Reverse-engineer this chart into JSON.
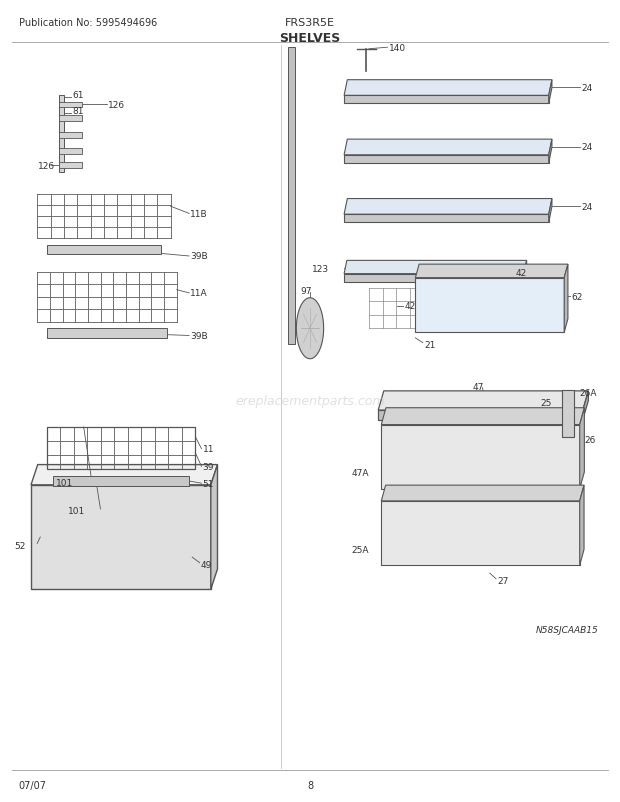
{
  "title": "SHELVES",
  "pub_no": "Publication No: 5995494696",
  "model": "FRS3R5E",
  "date": "07/07",
  "page": "8",
  "watermark": "ereplacementparts.com",
  "diagram_note": "N58SJCAAB15",
  "background_color": "#ffffff",
  "line_color": "#555555",
  "text_color": "#333333"
}
